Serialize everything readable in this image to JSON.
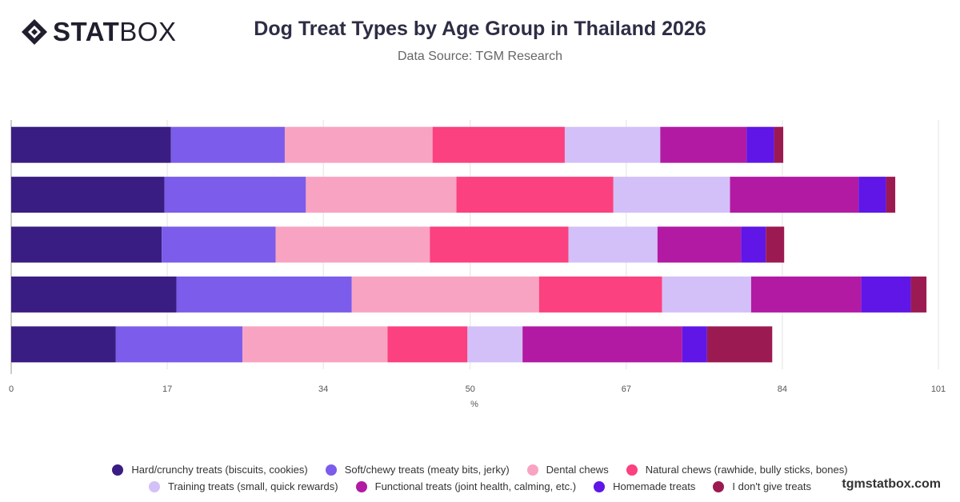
{
  "brand": {
    "logo_bold": "STAT",
    "logo_light": "BOX"
  },
  "title": "Dog Treat Types by Age Group in Thailand 2026",
  "subtitle": "Data Source: TGM Research",
  "watermark": "tgmstatbox.com",
  "legend_rows": [
    [
      {
        "label": "Hard/crunchy treats (biscuits, cookies)",
        "color": "#3a1d82"
      },
      {
        "label": "Soft/chewy treats (meaty bits, jerky)",
        "color": "#7c5cea"
      },
      {
        "label": "Dental chews",
        "color": "#f9a3c2"
      },
      {
        "label": "Natural chews (rawhide, bully sticks, bones)",
        "color": "#fb417f"
      }
    ],
    [
      {
        "label": "Training treats (small, quick rewards)",
        "color": "#d4c0f8"
      },
      {
        "label": "Functional treats (joint health, calming, etc.)",
        "color": "#b21aa4"
      },
      {
        "label": "Homemade treats",
        "color": "#5f16e6"
      },
      {
        "label": "I don't give treats",
        "color": "#9c1a52"
      }
    ]
  ],
  "chart_data": {
    "type": "bar",
    "orientation": "horizontal",
    "stacked": true,
    "title": "Dog Treat Types by Age Group in Thailand 2026",
    "xlabel": "%",
    "xlim": [
      0,
      101
    ],
    "xticks": [
      0,
      17,
      34,
      50,
      67,
      84,
      101
    ],
    "grid": true,
    "legend_position": "bottom",
    "categories": [
      "",
      "",
      "",
      "",
      ""
    ],
    "series": [
      {
        "name": "Hard/crunchy treats (biscuits, cookies)",
        "color": "#3a1d82",
        "values": [
          17.4,
          16.7,
          16.4,
          18.0,
          11.4
        ]
      },
      {
        "name": "Soft/chewy treats (meaty bits, jerky)",
        "color": "#7c5cea",
        "values": [
          12.4,
          15.4,
          12.4,
          19.1,
          13.8
        ]
      },
      {
        "name": "Dental chews",
        "color": "#f9a3c2",
        "values": [
          16.1,
          16.4,
          16.8,
          20.4,
          15.8
        ]
      },
      {
        "name": "Natural chews (rawhide, bully sticks, bones)",
        "color": "#fb417f",
        "values": [
          14.4,
          17.1,
          15.1,
          13.4,
          8.7
        ]
      },
      {
        "name": "Training treats (small, quick rewards)",
        "color": "#d4c0f8",
        "values": [
          10.4,
          12.7,
          9.7,
          9.7,
          6.0
        ]
      },
      {
        "name": "Functional treats (joint health, calming, etc.)",
        "color": "#b21aa4",
        "values": [
          9.4,
          14.0,
          9.1,
          12.0,
          17.4
        ]
      },
      {
        "name": "Homemade treats",
        "color": "#5f16e6",
        "values": [
          3.0,
          3.0,
          2.7,
          5.4,
          2.7
        ]
      },
      {
        "name": "I don't give treats",
        "color": "#9c1a52",
        "values": [
          1.0,
          1.0,
          2.0,
          1.7,
          7.1
        ]
      }
    ]
  }
}
